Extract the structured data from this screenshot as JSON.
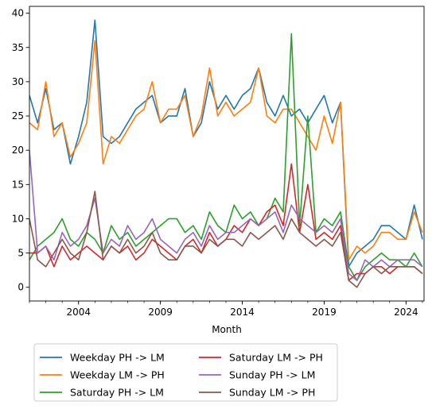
{
  "chart_data": {
    "type": "line",
    "title": "",
    "xlabel": "Month",
    "ylabel": "",
    "xlim": [
      2001.0,
      2025.1
    ],
    "ylim": [
      -2,
      41
    ],
    "grid": false,
    "legend_position": "bottom-center, two columns",
    "x_ticks": [
      {
        "value": 2004.0,
        "label": "2004"
      },
      {
        "value": 2009.0,
        "label": "2009"
      },
      {
        "value": 2014.0,
        "label": "2014"
      },
      {
        "value": 2019.0,
        "label": "2019"
      },
      {
        "value": 2024.0,
        "label": "2024"
      }
    ],
    "y_ticks": [
      {
        "value": 0,
        "label": "0"
      },
      {
        "value": 5,
        "label": "5"
      },
      {
        "value": 10,
        "label": "10"
      },
      {
        "value": 15,
        "label": "15"
      },
      {
        "value": 20,
        "label": "20"
      },
      {
        "value": 25,
        "label": "25"
      },
      {
        "value": 30,
        "label": "30"
      },
      {
        "value": 35,
        "label": "35"
      },
      {
        "value": 40,
        "label": "40"
      }
    ],
    "x_minor_step_years": 1,
    "x": [
      2001.0,
      2001.5,
      2002.0,
      2002.5,
      2003.0,
      2003.5,
      2004.0,
      2004.5,
      2005.0,
      2005.5,
      2006.0,
      2006.5,
      2007.0,
      2007.5,
      2008.0,
      2008.5,
      2009.0,
      2009.5,
      2010.0,
      2010.5,
      2011.0,
      2011.5,
      2012.0,
      2012.5,
      2013.0,
      2013.5,
      2014.0,
      2014.5,
      2015.0,
      2015.5,
      2016.0,
      2016.5,
      2017.0,
      2017.5,
      2018.0,
      2018.5,
      2019.0,
      2019.5,
      2020.0,
      2020.5,
      2021.0,
      2021.5,
      2022.0,
      2022.5,
      2023.0,
      2023.5,
      2024.0,
      2024.5,
      2025.0
    ],
    "series": [
      {
        "name": "Weekday PH -> LM",
        "color": "#1f77b4",
        "values": [
          28,
          24,
          29,
          23,
          24,
          18,
          22,
          27,
          39,
          22,
          21,
          22,
          24,
          26,
          27,
          28,
          24,
          25,
          25,
          29,
          22,
          24,
          30,
          26,
          28,
          26,
          28,
          29,
          32,
          27,
          25,
          28,
          25,
          26,
          24,
          26,
          28,
          24,
          27,
          3,
          5,
          6,
          7,
          9,
          9,
          8,
          7,
          12,
          7
        ]
      },
      {
        "name": "Weekday LM -> PH",
        "color": "#ff7f0e",
        "values": [
          24,
          23,
          30,
          22,
          24,
          19,
          21,
          24,
          36,
          18,
          22,
          21,
          23,
          25,
          26,
          30,
          24,
          26,
          26,
          28,
          22,
          25,
          32,
          25,
          27,
          25,
          26,
          27,
          32,
          25,
          24,
          26,
          26,
          24,
          22,
          20,
          25,
          21,
          27,
          4,
          6,
          5,
          6,
          8,
          8,
          7,
          7,
          11,
          8
        ]
      },
      {
        "name": "Saturday PH -> LM",
        "color": "#2ca02c",
        "values": [
          4,
          6,
          7,
          8,
          10,
          7,
          6,
          8,
          7,
          5,
          9,
          7,
          8,
          6,
          7,
          8,
          9,
          10,
          10,
          8,
          9,
          7,
          11,
          9,
          8,
          12,
          10,
          11,
          9,
          10,
          13,
          11,
          37,
          9,
          25,
          8,
          10,
          9,
          11,
          3,
          1,
          3,
          4,
          5,
          4,
          4,
          3,
          5,
          3
        ]
      },
      {
        "name": "Saturday LM -> PH",
        "color": "#d62728",
        "values": [
          5,
          5,
          6,
          3,
          6,
          4,
          5,
          6,
          5,
          4,
          6,
          5,
          6,
          4,
          5,
          7,
          6,
          5,
          4,
          6,
          7,
          5,
          8,
          6,
          7,
          9,
          8,
          10,
          9,
          11,
          12,
          9,
          18,
          8,
          15,
          7,
          8,
          7,
          9,
          1,
          2,
          2,
          3,
          3,
          2,
          3,
          3,
          3,
          2
        ]
      },
      {
        "name": "Sunday PH -> LM",
        "color": "#9467bd",
        "values": [
          20,
          5,
          6,
          4,
          8,
          6,
          7,
          9,
          13,
          5,
          7,
          6,
          9,
          7,
          8,
          10,
          7,
          6,
          5,
          7,
          8,
          6,
          9,
          7,
          8,
          8,
          9,
          10,
          9,
          10,
          11,
          8,
          12,
          10,
          9,
          8,
          9,
          8,
          10,
          2,
          1,
          4,
          3,
          4,
          3,
          4,
          4,
          4,
          3
        ]
      },
      {
        "name": "Sunday LM -> PH",
        "color": "#8c564b",
        "values": [
          10,
          4,
          3,
          5,
          7,
          5,
          4,
          8,
          14,
          4,
          6,
          5,
          7,
          5,
          6,
          8,
          5,
          4,
          4,
          6,
          6,
          5,
          7,
          6,
          7,
          7,
          6,
          8,
          7,
          8,
          9,
          7,
          10,
          8,
          7,
          6,
          7,
          6,
          8,
          1,
          0,
          2,
          3,
          2,
          3,
          3,
          3,
          3,
          2
        ]
      }
    ]
  }
}
